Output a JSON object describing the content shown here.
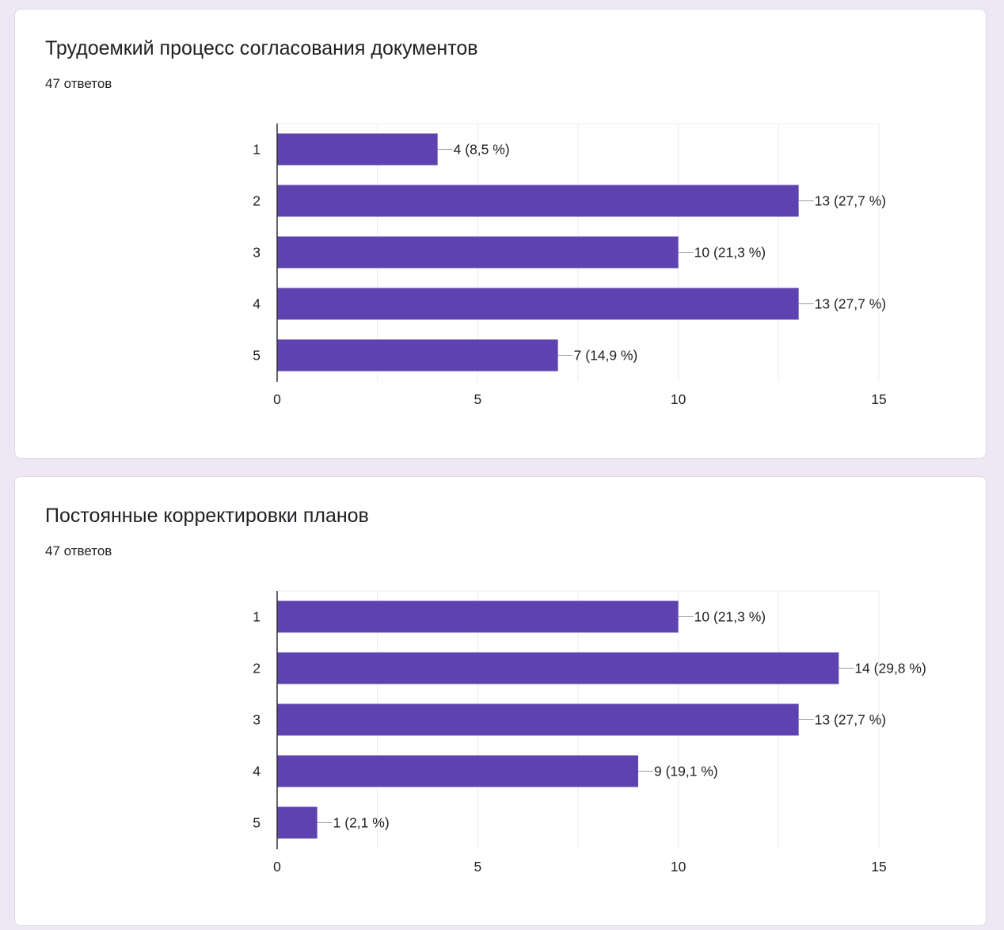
{
  "colors": {
    "bar": "#5e43b0",
    "background": "#ede7f6",
    "card": "#ffffff",
    "grid": "#ebebeb",
    "axis": "#333333"
  },
  "chart_data": [
    {
      "type": "bar",
      "orientation": "horizontal",
      "title": "Трудоемкий процесс согласования документов",
      "subtitle": "47 ответов",
      "categories": [
        "1",
        "2",
        "3",
        "4",
        "5"
      ],
      "values": [
        4,
        13,
        10,
        13,
        7
      ],
      "data_labels": [
        "4 (8,5 %)",
        "13 (27,7 %)",
        "10 (21,3 %)",
        "13 (27,7 %)",
        "7 (14,9 %)"
      ],
      "xlim": [
        0,
        15
      ],
      "x_ticks": [
        "0",
        "5",
        "10",
        "15"
      ],
      "grid": true,
      "legend": "none"
    },
    {
      "type": "bar",
      "orientation": "horizontal",
      "title": "Постоянные корректировки планов",
      "subtitle": "47 ответов",
      "categories": [
        "1",
        "2",
        "3",
        "4",
        "5"
      ],
      "values": [
        10,
        14,
        13,
        9,
        1
      ],
      "data_labels": [
        "10 (21,3 %)",
        "14 (29,8 %)",
        "13 (27,7 %)",
        "9 (19,1 %)",
        "1 (2,1 %)"
      ],
      "xlim": [
        0,
        15
      ],
      "x_ticks": [
        "0",
        "5",
        "10",
        "15"
      ],
      "grid": true,
      "legend": "none"
    }
  ]
}
